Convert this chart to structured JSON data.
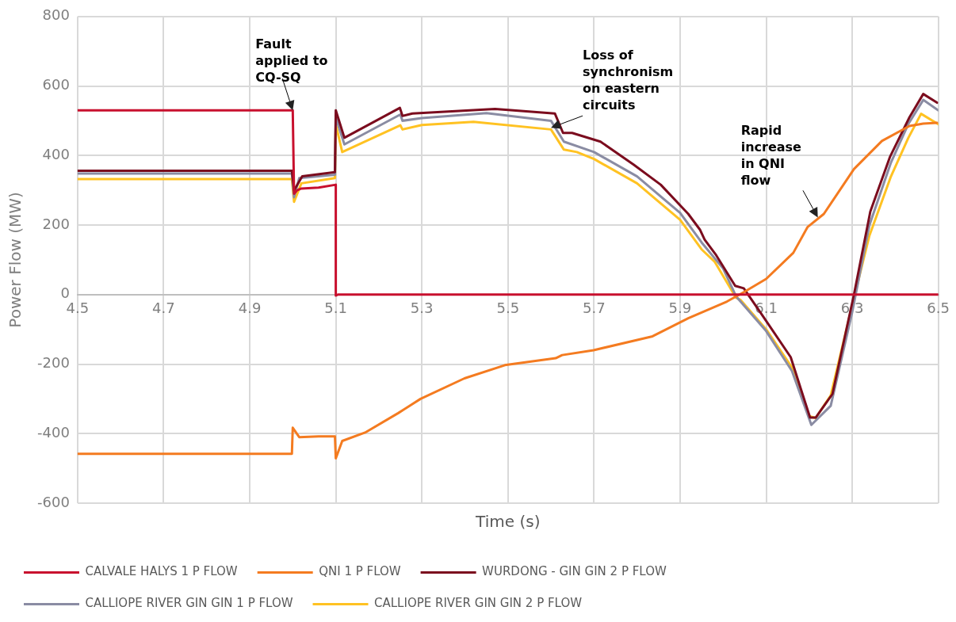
{
  "chart_data": {
    "type": "line",
    "xlabel": "Time (s)",
    "ylabel": "Power Flow (MW)",
    "xlim": [
      4.5,
      6.5
    ],
    "xticks": [
      4.5,
      4.7,
      4.9,
      5.1,
      5.3,
      5.5,
      5.7,
      5.9,
      6.1,
      6.3,
      6.5
    ],
    "ylim": [
      -600,
      800
    ],
    "yticks": [
      -600,
      -400,
      -200,
      0,
      200,
      400,
      600,
      800
    ],
    "grid": true,
    "legend": "bottom",
    "line_style": "solid",
    "marker": "none",
    "annotations": [
      {
        "text": "Fault applied to CQ-SQ",
        "x": 5.0,
        "y": 530
      },
      {
        "text": "Loss of synchronism on eastern circuits",
        "x": 5.6,
        "y": 480
      },
      {
        "text": "Rapid increase in QNI flow",
        "x": 6.22,
        "y": 222
      }
    ],
    "series": [
      {
        "name": "CALVALE HALYS 1 P FLOW",
        "color": "#c8102e",
        "x": [
          4.5,
          5.0,
          5.003,
          5.01,
          5.02,
          5.06,
          5.1,
          5.1,
          5.105,
          6.5
        ],
        "values": [
          530,
          530,
          290,
          300,
          305,
          308,
          316,
          -3,
          0,
          0
        ]
      },
      {
        "name": "QNI 1 P FLOW",
        "color": "#f47b20",
        "x": [
          4.5,
          4.998,
          5.0,
          5.015,
          5.06,
          5.098,
          5.1,
          5.115,
          5.168,
          5.245,
          5.297,
          5.399,
          5.493,
          5.611,
          5.626,
          5.699,
          5.836,
          5.919,
          6.009,
          6.048,
          6.1,
          6.163,
          6.196,
          6.234,
          6.304,
          6.369,
          6.433,
          6.465,
          6.497
        ],
        "values": [
          -458,
          -458,
          -383,
          -410,
          -408,
          -408,
          -471,
          -421,
          -397,
          -341,
          -300,
          -241,
          -203,
          -183,
          -174,
          -160,
          -120,
          -68,
          -20,
          7,
          45,
          120,
          194,
          232,
          361,
          442,
          485,
          492,
          494
        ]
      },
      {
        "name": "WURDONG - GIN GIN 2 P FLOW",
        "color": "#7b0c1e",
        "x": [
          4.5,
          4.998,
          5.003,
          5.022,
          5.098,
          5.1,
          5.12,
          5.249,
          5.255,
          5.278,
          5.47,
          5.609,
          5.628,
          5.649,
          5.715,
          5.792,
          5.855,
          5.919,
          5.946,
          5.957,
          5.984,
          6.028,
          6.048,
          6.092,
          6.157,
          6.202,
          6.215,
          6.254,
          6.304,
          6.342,
          6.388,
          6.433,
          6.465,
          6.497
        ],
        "values": [
          356,
          356,
          300,
          340,
          352,
          530,
          451,
          537,
          514,
          521,
          534,
          521,
          465,
          465,
          440,
          374,
          316,
          232,
          187,
          158,
          113,
          25,
          18,
          -61,
          -180,
          -354,
          -354,
          -286,
          0,
          239,
          397,
          510,
          577,
          552
        ]
      },
      {
        "name": "CALLIOPE RIVER GIN GIN 1 P FLOW",
        "color": "#8a8ca3",
        "x": [
          4.5,
          4.998,
          5.003,
          5.015,
          5.098,
          5.1,
          5.12,
          5.25,
          5.255,
          5.3,
          5.45,
          5.6,
          5.63,
          5.7,
          5.8,
          5.9,
          5.95,
          6.0,
          6.03,
          6.1,
          6.16,
          6.205,
          6.25,
          6.3,
          6.34,
          6.39,
          6.43,
          6.465,
          6.5
        ],
        "values": [
          348,
          348,
          280,
          335,
          345,
          510,
          432,
          518,
          500,
          508,
          522,
          500,
          440,
          410,
          340,
          235,
          150,
          75,
          -5,
          -105,
          -220,
          -375,
          -320,
          -50,
          200,
          380,
          490,
          560,
          530
        ]
      },
      {
        "name": "CALLIOPE RIVER GIN GIN 2 P FLOW",
        "color": "#ffc222",
        "x": [
          4.5,
          4.998,
          5.003,
          5.02,
          5.098,
          5.1,
          5.115,
          5.25,
          5.255,
          5.3,
          5.42,
          5.6,
          5.63,
          5.66,
          5.7,
          5.8,
          5.9,
          5.95,
          5.98,
          6.03,
          6.04,
          6.1,
          6.16,
          6.2,
          6.215,
          6.25,
          6.3,
          6.34,
          6.39,
          6.43,
          6.46,
          6.5
        ],
        "values": [
          332,
          332,
          267,
          320,
          335,
          490,
          410,
          487,
          475,
          488,
          497,
          475,
          417,
          410,
          390,
          320,
          215,
          130,
          95,
          -9,
          -15,
          -100,
          -210,
          -350,
          -355,
          -290,
          -30,
          170,
          340,
          450,
          520,
          490
        ]
      }
    ]
  }
}
